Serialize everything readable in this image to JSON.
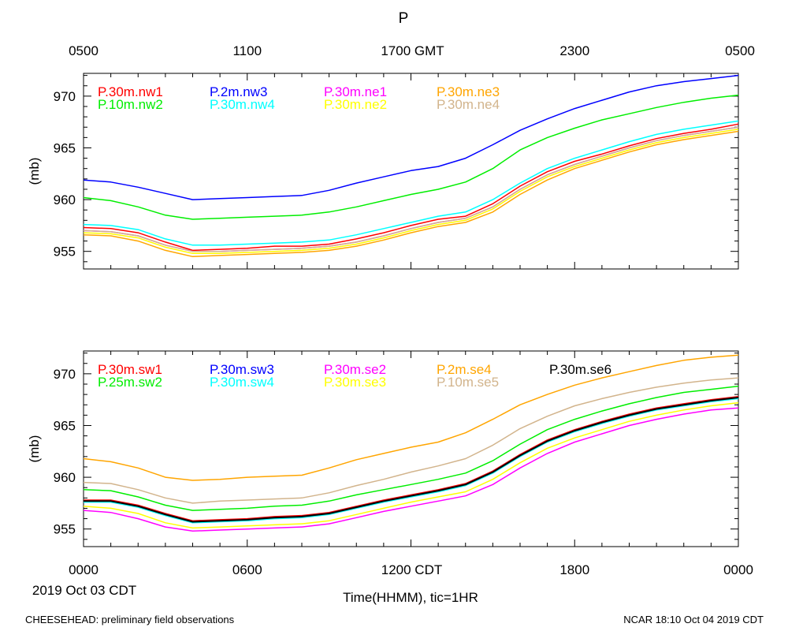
{
  "figure": {
    "title": "P",
    "top_ticks": [
      "0500",
      "1100",
      "1700 GMT",
      "2300",
      "0500"
    ],
    "bottom_ticks": [
      "0000",
      "0600",
      "1200 CDT",
      "1800",
      "0000"
    ],
    "date_label": "2019 Oct 03 CDT",
    "xlabel": "Time(HHMM), tic=1HR",
    "footer_left": "CHEESEHEAD: preliminary field observations",
    "footer_right": "NCAR 18:10 Oct 04 2019 CDT"
  },
  "chart_data": [
    {
      "type": "line",
      "title": "P",
      "ylabel": "(mb)",
      "ylim": [
        953.3,
        972.2
      ],
      "yticks": [
        955,
        960,
        965,
        970
      ],
      "xlabel": "Time(HHMM), tic=1HR",
      "xlim_hours": [
        0,
        24
      ],
      "x_hours": [
        0,
        1,
        2,
        3,
        4,
        5,
        6,
        7,
        8,
        9,
        10,
        11,
        12,
        13,
        14,
        15,
        16,
        17,
        18,
        19,
        20,
        21,
        22,
        23,
        24
      ],
      "series": [
        {
          "name": "P.30m.nw1",
          "color": "#ff0000",
          "values": [
            957.3,
            957.2,
            956.8,
            955.9,
            955.1,
            955.2,
            955.3,
            955.5,
            955.5,
            955.7,
            956.2,
            956.8,
            957.5,
            958.1,
            958.4,
            959.6,
            961.3,
            962.7,
            963.7,
            964.4,
            965.2,
            965.9,
            966.4,
            966.8,
            967.3
          ]
        },
        {
          "name": "P.10m.nw2",
          "color": "#00ee00",
          "values": [
            960.2,
            959.9,
            959.3,
            958.5,
            958.1,
            958.2,
            958.3,
            958.4,
            958.5,
            958.8,
            959.3,
            959.9,
            960.5,
            961.0,
            961.7,
            963.0,
            964.8,
            966.0,
            966.9,
            967.7,
            968.3,
            968.9,
            969.4,
            969.8,
            970.1
          ]
        },
        {
          "name": "P.2m.nw3",
          "color": "#0000ff",
          "values": [
            961.9,
            961.7,
            961.2,
            960.6,
            960.0,
            960.1,
            960.2,
            960.3,
            960.4,
            960.9,
            961.6,
            962.2,
            962.8,
            963.2,
            964.0,
            965.3,
            966.7,
            967.8,
            968.8,
            969.6,
            970.4,
            971.0,
            971.4,
            971.7,
            972.0
          ]
        },
        {
          "name": "P.30m.nw4",
          "color": "#00ffff",
          "values": [
            957.6,
            957.5,
            957.1,
            956.2,
            955.6,
            955.6,
            955.7,
            955.8,
            955.9,
            956.1,
            956.6,
            957.2,
            957.8,
            958.4,
            958.8,
            960.0,
            961.6,
            963.0,
            964.0,
            964.8,
            965.6,
            966.3,
            966.8,
            967.2,
            967.6
          ]
        },
        {
          "name": "P.30m.ne1",
          "color": "#ff00ff",
          "values": [
            957.0,
            956.9,
            956.5,
            955.6,
            955.0,
            955.0,
            955.1,
            955.2,
            955.3,
            955.5,
            955.9,
            956.5,
            957.2,
            957.8,
            958.2,
            959.3,
            961.0,
            962.4,
            963.4,
            964.2,
            965.0,
            965.7,
            966.2,
            966.6,
            967.0
          ]
        },
        {
          "name": "P.30m.ne2",
          "color": "#ffff00",
          "values": [
            956.8,
            956.7,
            956.3,
            955.4,
            954.8,
            954.8,
            954.9,
            955.0,
            955.1,
            955.3,
            955.7,
            956.3,
            957.0,
            957.6,
            958.0,
            959.1,
            960.8,
            962.2,
            963.2,
            964.0,
            964.8,
            965.5,
            966.0,
            966.4,
            966.8
          ]
        },
        {
          "name": "P.30m.ne3",
          "color": "#ffa500",
          "values": [
            956.6,
            956.5,
            956.0,
            955.1,
            954.5,
            954.6,
            954.7,
            954.8,
            954.9,
            955.1,
            955.5,
            956.1,
            956.8,
            957.4,
            957.8,
            958.8,
            960.5,
            961.9,
            963.0,
            963.8,
            964.6,
            965.3,
            965.8,
            966.2,
            966.6
          ]
        },
        {
          "name": "P.30m.ne4",
          "color": "#d2b48c",
          "values": [
            957.0,
            956.9,
            956.5,
            955.6,
            955.0,
            955.0,
            955.1,
            955.2,
            955.3,
            955.5,
            955.9,
            956.5,
            957.2,
            957.8,
            958.2,
            959.3,
            961.0,
            962.4,
            963.4,
            964.2,
            965.0,
            965.7,
            966.2,
            966.6,
            967.0
          ]
        }
      ]
    },
    {
      "type": "line",
      "ylabel": "(mb)",
      "ylim": [
        953.3,
        972.2
      ],
      "yticks": [
        955,
        960,
        965,
        970
      ],
      "xlim_hours": [
        0,
        24
      ],
      "x_hours": [
        0,
        1,
        2,
        3,
        4,
        5,
        6,
        7,
        8,
        9,
        10,
        11,
        12,
        13,
        14,
        15,
        16,
        17,
        18,
        19,
        20,
        21,
        22,
        23,
        24
      ],
      "series": [
        {
          "name": "P.30m.sw1",
          "color": "#ff0000",
          "values": [
            957.8,
            957.8,
            957.3,
            956.5,
            955.8,
            955.9,
            956.0,
            956.2,
            956.3,
            956.6,
            957.2,
            957.8,
            958.3,
            958.8,
            959.4,
            960.6,
            962.2,
            963.6,
            964.6,
            965.4,
            966.1,
            966.7,
            967.1,
            967.5,
            967.8
          ]
        },
        {
          "name": "P.25m.sw2",
          "color": "#00ee00",
          "values": [
            958.8,
            958.7,
            958.1,
            957.3,
            956.8,
            956.9,
            957.0,
            957.2,
            957.3,
            957.7,
            958.3,
            958.8,
            959.3,
            959.8,
            960.4,
            961.6,
            963.2,
            964.6,
            965.6,
            966.4,
            967.1,
            967.7,
            968.2,
            968.5,
            968.8
          ]
        },
        {
          "name": "P.30m.sw3",
          "color": "#0000ff",
          "values": [
            957.7,
            957.7,
            957.2,
            956.4,
            955.7,
            955.8,
            955.9,
            956.1,
            956.2,
            956.5,
            957.1,
            957.7,
            958.2,
            958.7,
            959.3,
            960.5,
            962.1,
            963.5,
            964.5,
            965.3,
            966.0,
            966.6,
            967.0,
            967.4,
            967.7
          ]
        },
        {
          "name": "P.30m.sw4",
          "color": "#00ffff",
          "values": [
            957.6,
            957.6,
            957.1,
            956.3,
            955.6,
            955.7,
            955.8,
            956.0,
            956.1,
            956.4,
            957.0,
            957.6,
            958.1,
            958.6,
            959.2,
            960.4,
            962.0,
            963.4,
            964.4,
            965.2,
            965.9,
            966.5,
            966.9,
            967.3,
            967.6
          ]
        },
        {
          "name": "P.30m.se2",
          "color": "#ff00ff",
          "values": [
            956.8,
            956.6,
            956.0,
            955.2,
            954.8,
            954.9,
            955.0,
            955.1,
            955.2,
            955.5,
            956.1,
            956.7,
            957.2,
            957.7,
            958.2,
            959.3,
            960.9,
            962.3,
            963.4,
            964.2,
            965.0,
            965.6,
            966.1,
            966.5,
            966.7
          ]
        },
        {
          "name": "P.30m.se3",
          "color": "#ffff00",
          "values": [
            957.2,
            957.0,
            956.5,
            955.6,
            955.1,
            955.2,
            955.3,
            955.4,
            955.5,
            955.8,
            956.4,
            957.0,
            957.6,
            958.1,
            958.6,
            959.8,
            961.4,
            962.8,
            963.8,
            964.6,
            965.4,
            966.0,
            966.5,
            966.9,
            967.2
          ]
        },
        {
          "name": "P.2m.se4",
          "color": "#ffa500",
          "values": [
            961.8,
            961.5,
            960.9,
            960.0,
            959.7,
            959.8,
            960.0,
            960.1,
            960.2,
            960.9,
            961.7,
            962.3,
            962.9,
            963.4,
            964.3,
            965.6,
            967.0,
            968.0,
            968.9,
            969.6,
            970.2,
            970.8,
            971.3,
            971.6,
            971.8
          ]
        },
        {
          "name": "P.10m.se5",
          "color": "#d2b48c",
          "values": [
            959.5,
            959.4,
            958.8,
            958.0,
            957.5,
            957.7,
            957.8,
            957.9,
            958.0,
            958.5,
            959.2,
            959.8,
            960.5,
            961.1,
            961.8,
            963.1,
            964.7,
            965.9,
            966.9,
            967.6,
            968.2,
            968.7,
            969.1,
            969.4,
            969.6
          ]
        },
        {
          "name": "P.30m.se6",
          "color": "#000000",
          "values": [
            957.7,
            957.7,
            957.2,
            956.4,
            955.7,
            955.8,
            955.9,
            956.1,
            956.2,
            956.5,
            957.1,
            957.7,
            958.2,
            958.7,
            959.3,
            960.5,
            962.1,
            963.5,
            964.5,
            965.3,
            966.0,
            966.6,
            967.0,
            967.4,
            967.7
          ]
        }
      ]
    }
  ]
}
